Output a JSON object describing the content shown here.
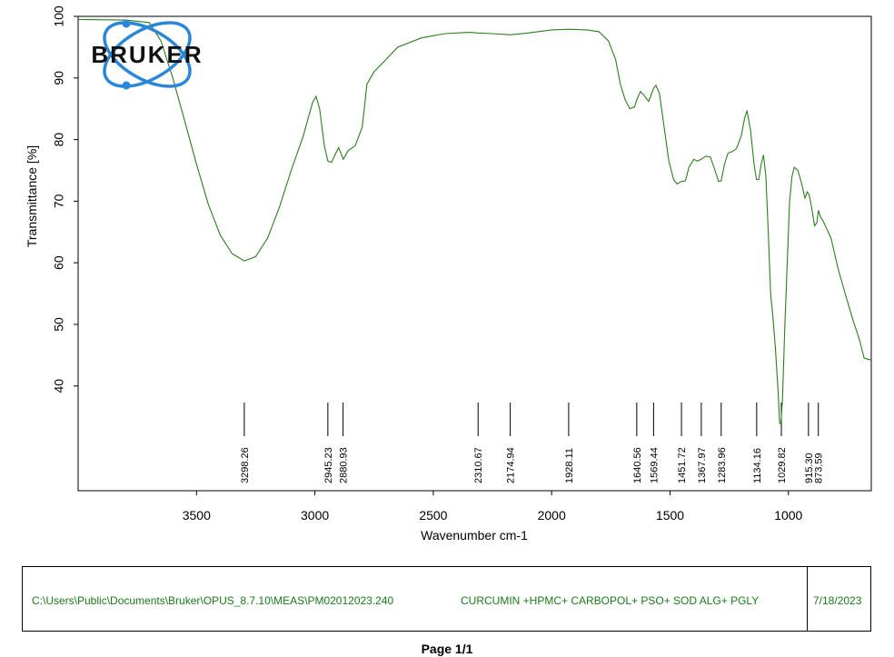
{
  "chart_data": {
    "type": "line",
    "xlabel": "Wavenumber cm-1",
    "ylabel": "Transmittance [%]",
    "xlim": [
      4000,
      650
    ],
    "ylim": [
      23,
      100
    ],
    "x_ticks": [
      3500,
      3000,
      2500,
      2000,
      1500,
      1000
    ],
    "y_ticks": [
      40,
      50,
      60,
      70,
      80,
      90,
      100
    ],
    "line_color": "#2e7d1e",
    "grid": false,
    "series": [
      {
        "points": [
          [
            4000,
            99.5
          ],
          [
            3800,
            99.4
          ],
          [
            3700,
            99.0
          ],
          [
            3650,
            96.0
          ],
          [
            3600,
            90.0
          ],
          [
            3550,
            83.0
          ],
          [
            3500,
            76.0
          ],
          [
            3450,
            69.5
          ],
          [
            3400,
            64.5
          ],
          [
            3350,
            61.5
          ],
          [
            3298,
            60.3
          ],
          [
            3250,
            61.0
          ],
          [
            3200,
            64.0
          ],
          [
            3150,
            69.0
          ],
          [
            3100,
            75.0
          ],
          [
            3050,
            80.5
          ],
          [
            3010,
            86.0
          ],
          [
            2995,
            87.0
          ],
          [
            2980,
            85.0
          ],
          [
            2960,
            79.0
          ],
          [
            2945,
            76.5
          ],
          [
            2930,
            76.3
          ],
          [
            2915,
            77.5
          ],
          [
            2900,
            78.7
          ],
          [
            2880,
            76.8
          ],
          [
            2860,
            78.2
          ],
          [
            2830,
            79.0
          ],
          [
            2800,
            82.0
          ],
          [
            2780,
            89.0
          ],
          [
            2750,
            91.0
          ],
          [
            2700,
            93.0
          ],
          [
            2650,
            95.0
          ],
          [
            2550,
            96.5
          ],
          [
            2450,
            97.2
          ],
          [
            2350,
            97.4
          ],
          [
            2310,
            97.3
          ],
          [
            2250,
            97.2
          ],
          [
            2175,
            97.0
          ],
          [
            2100,
            97.3
          ],
          [
            2000,
            97.8
          ],
          [
            1928,
            97.9
          ],
          [
            1850,
            97.8
          ],
          [
            1800,
            97.5
          ],
          [
            1760,
            96.0
          ],
          [
            1730,
            93.0
          ],
          [
            1710,
            89.0
          ],
          [
            1690,
            86.5
          ],
          [
            1670,
            85.0
          ],
          [
            1650,
            85.3
          ],
          [
            1640,
            86.5
          ],
          [
            1625,
            87.8
          ],
          [
            1610,
            87.2
          ],
          [
            1590,
            86.2
          ],
          [
            1570,
            88.3
          ],
          [
            1560,
            88.8
          ],
          [
            1545,
            87.5
          ],
          [
            1525,
            82.0
          ],
          [
            1505,
            76.5
          ],
          [
            1485,
            73.5
          ],
          [
            1470,
            72.8
          ],
          [
            1452,
            73.2
          ],
          [
            1435,
            73.3
          ],
          [
            1420,
            75.5
          ],
          [
            1400,
            76.8
          ],
          [
            1385,
            76.5
          ],
          [
            1368,
            76.8
          ],
          [
            1350,
            77.3
          ],
          [
            1330,
            77.2
          ],
          [
            1310,
            75.0
          ],
          [
            1295,
            73.2
          ],
          [
            1284,
            73.3
          ],
          [
            1270,
            76.0
          ],
          [
            1255,
            77.8
          ],
          [
            1240,
            78.0
          ],
          [
            1220,
            78.5
          ],
          [
            1200,
            80.5
          ],
          [
            1185,
            83.5
          ],
          [
            1175,
            84.7
          ],
          [
            1160,
            81.5
          ],
          [
            1145,
            76.0
          ],
          [
            1135,
            73.5
          ],
          [
            1125,
            73.5
          ],
          [
            1115,
            76.0
          ],
          [
            1105,
            77.5
          ],
          [
            1095,
            74.0
          ],
          [
            1085,
            65.0
          ],
          [
            1075,
            55.0
          ],
          [
            1065,
            51.0
          ],
          [
            1055,
            46.0
          ],
          [
            1045,
            40.0
          ],
          [
            1037,
            34.0
          ],
          [
            1032,
            33.8
          ],
          [
            1025,
            38.0
          ],
          [
            1015,
            50.0
          ],
          [
            1005,
            60.0
          ],
          [
            995,
            70.0
          ],
          [
            985,
            74.0
          ],
          [
            975,
            75.5
          ],
          [
            960,
            75.0
          ],
          [
            945,
            73.0
          ],
          [
            930,
            70.5
          ],
          [
            920,
            71.5
          ],
          [
            912,
            71.0
          ],
          [
            900,
            68.5
          ],
          [
            890,
            66.0
          ],
          [
            880,
            66.5
          ],
          [
            873,
            68.5
          ],
          [
            865,
            67.5
          ],
          [
            850,
            66.5
          ],
          [
            820,
            64.0
          ],
          [
            790,
            59.0
          ],
          [
            760,
            55.0
          ],
          [
            730,
            51.0
          ],
          [
            700,
            47.5
          ],
          [
            680,
            44.5
          ],
          [
            650,
            44.2
          ]
        ]
      }
    ],
    "peak_labels": [
      "3298.26",
      "2945.23",
      "2880.93",
      "2310.67",
      "2174.94",
      "1928.11",
      "1640.56",
      "1569.44",
      "1451.72",
      "1367.97",
      "1283.96",
      "1134.16",
      "1029.82",
      "915.30",
      "873.59"
    ]
  },
  "logo": {
    "text": "BRUKER"
  },
  "info": {
    "path": "C:\\Users\\Public\\Documents\\Bruker\\OPUS_8.7.10\\MEAS\\PM02012023.240",
    "sample": "CURCUMIN +HPMC+ CARBOPOL+ PSO+ SOD ALG+ PGLY",
    "date": "7/18/2023"
  },
  "footer": {
    "page": "Page 1/1"
  }
}
